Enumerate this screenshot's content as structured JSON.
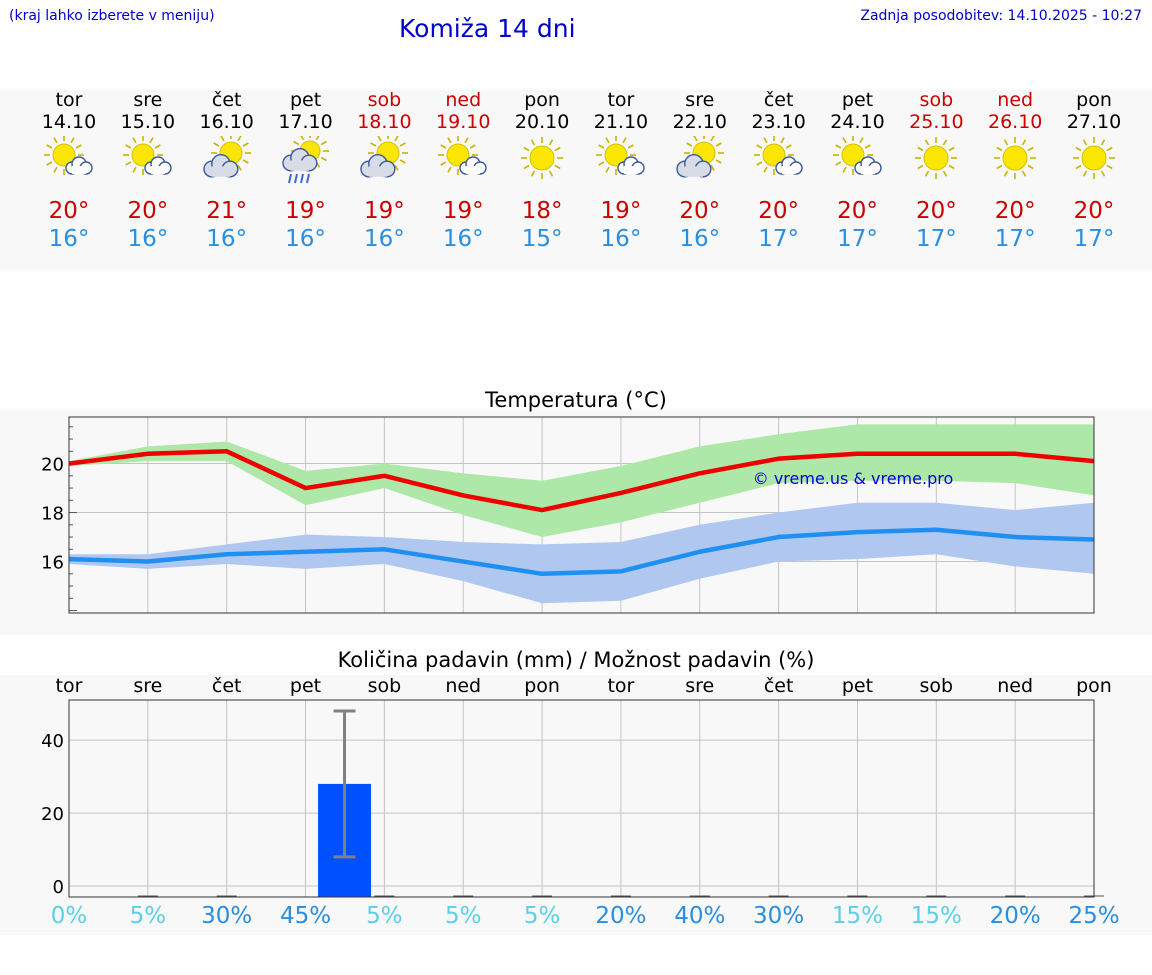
{
  "header": {
    "left_note": "(kraj lahko izberete v meniju)",
    "title": "Komiža 14 dni",
    "updated": "Zadnja posodobitev: 14.10.2025 - 10:27"
  },
  "colors": {
    "weekday": "#000000",
    "weekend": "#cc0000",
    "tmax": "#cc0000",
    "tmin": "#2a8ee0",
    "max_line": "#ee0000",
    "max_band": "#aee8a8",
    "min_line": "#1f8ff2",
    "min_band": "#b0c8f0",
    "precip_bar": "#0050ff",
    "pct_low": "#5ad0e8",
    "pct_high": "#2a8ee0"
  },
  "days": [
    {
      "name": "tor",
      "date": "14.10",
      "weekend": false,
      "icon": "sun-cloud-icon",
      "tmax": "20°",
      "tmin": "16°"
    },
    {
      "name": "sre",
      "date": "15.10",
      "weekend": false,
      "icon": "sun-cloud-icon",
      "tmax": "20°",
      "tmin": "16°"
    },
    {
      "name": "čet",
      "date": "16.10",
      "weekend": false,
      "icon": "cloud-sun-icon",
      "tmax": "21°",
      "tmin": "16°"
    },
    {
      "name": "pet",
      "date": "17.10",
      "weekend": false,
      "icon": "cloud-sun-rain-icon",
      "tmax": "19°",
      "tmin": "16°"
    },
    {
      "name": "sob",
      "date": "18.10",
      "weekend": true,
      "icon": "cloud-sun-icon",
      "tmax": "19°",
      "tmin": "16°"
    },
    {
      "name": "ned",
      "date": "19.10",
      "weekend": true,
      "icon": "sun-cloud-icon",
      "tmax": "19°",
      "tmin": "16°"
    },
    {
      "name": "pon",
      "date": "20.10",
      "weekend": false,
      "icon": "sun-icon",
      "tmax": "18°",
      "tmin": "15°"
    },
    {
      "name": "tor",
      "date": "21.10",
      "weekend": false,
      "icon": "sun-cloud-icon",
      "tmax": "19°",
      "tmin": "16°"
    },
    {
      "name": "sre",
      "date": "22.10",
      "weekend": false,
      "icon": "cloud-sun-icon",
      "tmax": "20°",
      "tmin": "16°"
    },
    {
      "name": "čet",
      "date": "23.10",
      "weekend": false,
      "icon": "sun-cloud-icon",
      "tmax": "20°",
      "tmin": "17°"
    },
    {
      "name": "pet",
      "date": "24.10",
      "weekend": false,
      "icon": "sun-cloud-icon",
      "tmax": "20°",
      "tmin": "17°"
    },
    {
      "name": "sob",
      "date": "25.10",
      "weekend": true,
      "icon": "sun-icon",
      "tmax": "20°",
      "tmin": "17°"
    },
    {
      "name": "ned",
      "date": "26.10",
      "weekend": true,
      "icon": "sun-icon",
      "tmax": "20°",
      "tmin": "17°"
    },
    {
      "name": "pon",
      "date": "27.10",
      "weekend": false,
      "icon": "sun-icon",
      "tmax": "20°",
      "tmin": "17°"
    }
  ],
  "chart_data": [
    {
      "type": "line",
      "title": "Temperatura (°C)",
      "watermark": "© vreme.us & vreme.pro",
      "categories": [
        "14.10",
        "15.10",
        "16.10",
        "17.10",
        "18.10",
        "19.10",
        "20.10",
        "21.10",
        "22.10",
        "23.10",
        "24.10",
        "25.10",
        "26.10",
        "27.10"
      ],
      "ylim": [
        13.9,
        21.9
      ],
      "yticks": [
        16,
        18,
        20
      ],
      "grid": true,
      "series": [
        {
          "values": [
            20.0,
            20.4,
            20.5,
            19.0,
            19.5,
            18.7,
            18.1,
            18.8,
            19.6,
            20.2,
            20.4,
            20.4,
            20.4,
            20.1
          ],
          "band_low": [
            19.9,
            20.1,
            20.1,
            18.3,
            19.0,
            17.9,
            17.0,
            17.6,
            18.4,
            19.2,
            19.3,
            19.3,
            19.2,
            18.7
          ],
          "band_high": [
            20.1,
            20.7,
            20.9,
            19.7,
            20.0,
            19.6,
            19.3,
            19.9,
            20.7,
            21.2,
            21.6,
            21.6,
            21.6,
            21.6
          ]
        },
        {
          "values": [
            16.1,
            16.0,
            16.3,
            16.4,
            16.5,
            16.0,
            15.5,
            15.6,
            16.4,
            17.0,
            17.2,
            17.3,
            17.0,
            16.9
          ],
          "band_low": [
            15.9,
            15.7,
            15.9,
            15.7,
            15.9,
            15.2,
            14.3,
            14.4,
            15.3,
            16.0,
            16.1,
            16.3,
            15.8,
            15.5
          ],
          "band_high": [
            16.3,
            16.3,
            16.7,
            17.1,
            17.0,
            16.8,
            16.7,
            16.8,
            17.5,
            18.0,
            18.4,
            18.4,
            18.1,
            18.4
          ]
        }
      ]
    },
    {
      "type": "bar",
      "title": "Količina padavin (mm) / Možnost padavin (%)",
      "categories": [
        "tor",
        "sre",
        "čet",
        "pet",
        "sob",
        "ned",
        "pon",
        "tor",
        "sre",
        "čet",
        "pet",
        "sob",
        "ned",
        "pon"
      ],
      "values": [
        0,
        0,
        0,
        28,
        0,
        0,
        0,
        0,
        0,
        0,
        0,
        0,
        0,
        0
      ],
      "error_low": [
        0,
        0,
        0,
        8,
        0,
        0,
        0,
        0,
        0,
        0,
        0,
        0,
        0,
        0
      ],
      "error_high": [
        0,
        0,
        0,
        48,
        0,
        0,
        0,
        0,
        0,
        0,
        0,
        0,
        0,
        0
      ],
      "ylim": [
        -3,
        51
      ],
      "yticks": [
        0,
        20,
        40
      ],
      "grid": true,
      "probability": [
        "0%",
        "5%",
        "30%",
        "45%",
        "5%",
        "5%",
        "5%",
        "20%",
        "40%",
        "30%",
        "15%",
        "15%",
        "20%",
        "25%"
      ],
      "probability_values": [
        0,
        5,
        30,
        45,
        5,
        5,
        5,
        20,
        40,
        30,
        15,
        15,
        20,
        25
      ]
    }
  ]
}
